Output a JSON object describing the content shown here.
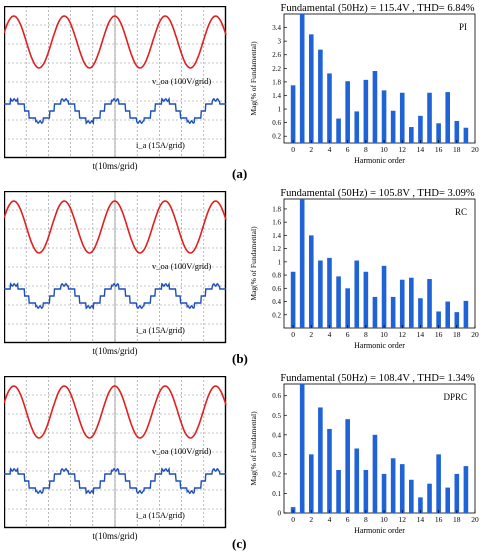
{
  "panels": [
    {
      "label": "(a)",
      "scope": {
        "voltage_label": "v_oa (100V/grid)",
        "current_label": "i_a (15A/grid)",
        "time_label": "t(10ms/grid)"
      },
      "chart_data": {
        "type": "bar",
        "title": "Fundamental (50Hz) = 115.4V , THD= 6.84%",
        "legend": "PI",
        "xlabel": "Harmonic order",
        "ylabel": "Mag(% of Fundamental)",
        "xlim": [
          -1,
          20
        ],
        "ylim": [
          0,
          3.8
        ],
        "xticks": [
          0,
          2,
          4,
          6,
          8,
          10,
          12,
          14,
          16,
          18,
          20
        ],
        "yticks": [
          0.2,
          0.6,
          1,
          1.4,
          1.8,
          2.2,
          2.6,
          3,
          3.4
        ],
        "ytick_labels": [
          "0.2",
          "0.6",
          "1",
          "1.4",
          "1.8",
          "2.2",
          "2.6",
          "3",
          "3.4"
        ],
        "x": [
          0,
          1,
          2,
          3,
          4,
          5,
          6,
          7,
          8,
          9,
          10,
          11,
          12,
          13,
          14,
          15,
          16,
          17,
          18,
          19
        ],
        "values": [
          1.7,
          3.8,
          3.2,
          2.75,
          2.05,
          0.72,
          1.82,
          0.93,
          1.86,
          2.12,
          1.55,
          0.95,
          1.48,
          0.47,
          0.8,
          1.48,
          0.58,
          1.5,
          0.65,
          0.45
        ]
      }
    },
    {
      "label": "(b)",
      "scope": {
        "voltage_label": "v_oa (100V/grid)",
        "current_label": "i_a (15A/grid)",
        "time_label": "t(10ms/grid)"
      },
      "chart_data": {
        "type": "bar",
        "title": "Fundamental (50Hz) = 105.8V , THD= 3.09%",
        "legend": "RC",
        "xlabel": "Harmonic order",
        "ylabel": "Mag(% of Fundamental)",
        "xlim": [
          -1,
          20
        ],
        "ylim": [
          0,
          1.95
        ],
        "xticks": [
          0,
          2,
          4,
          6,
          8,
          10,
          12,
          14,
          16,
          18,
          20
        ],
        "yticks": [
          0.2,
          0.4,
          0.6,
          0.8,
          1,
          1.2,
          1.4,
          1.6,
          1.8
        ],
        "ytick_labels": [
          "0.2",
          "0.4",
          "0.6",
          "0.8",
          "1",
          "1.2",
          "1.4",
          "1.6",
          "1.8"
        ],
        "x": [
          0,
          1,
          2,
          3,
          4,
          5,
          6,
          7,
          8,
          9,
          10,
          11,
          12,
          13,
          14,
          15,
          16,
          17,
          18,
          19
        ],
        "values": [
          0.85,
          1.95,
          1.4,
          1.02,
          1.06,
          0.78,
          0.6,
          1.02,
          0.85,
          0.47,
          0.94,
          0.47,
          0.73,
          0.76,
          0.45,
          0.74,
          0.25,
          0.4,
          0.24,
          0.41
        ]
      }
    },
    {
      "label": "(c)",
      "scope": {
        "voltage_label": "v_oa (100V/grid)",
        "current_label": "i_a (15A/grid)",
        "time_label": "t(10ms/grid)"
      },
      "chart_data": {
        "type": "bar",
        "title": "Fundamental (50Hz) = 108.4V , THD= 1.34%",
        "legend": "DPRC",
        "xlabel": "Harmonic order",
        "ylabel": "Mag(% of Fundamental)",
        "xlim": [
          -1,
          20
        ],
        "ylim": [
          0,
          0.66
        ],
        "xticks": [
          0,
          2,
          4,
          6,
          8,
          10,
          12,
          14,
          16,
          18,
          20
        ],
        "yticks": [
          0,
          0.1,
          0.2,
          0.3,
          0.4,
          0.5,
          0.6
        ],
        "ytick_labels": [
          "0",
          "0.1",
          "0.2",
          "0.3",
          "0.4",
          "0.5",
          "0.6"
        ],
        "x": [
          0,
          1,
          2,
          3,
          4,
          5,
          6,
          7,
          8,
          9,
          10,
          11,
          12,
          13,
          14,
          15,
          16,
          17,
          18,
          19
        ],
        "values": [
          0.03,
          0.66,
          0.3,
          0.54,
          0.43,
          0.22,
          0.48,
          0.33,
          0.22,
          0.4,
          0.2,
          0.28,
          0.25,
          0.17,
          0.08,
          0.15,
          0.3,
          0.13,
          0.2,
          0.24
        ]
      }
    }
  ],
  "colors": {
    "bar": "#1f63d6",
    "voltage_trace": "#e02020",
    "current_trace": "#1f4fb8",
    "scope_grid": "#8a8a8a",
    "scope_frame": "#000000"
  }
}
